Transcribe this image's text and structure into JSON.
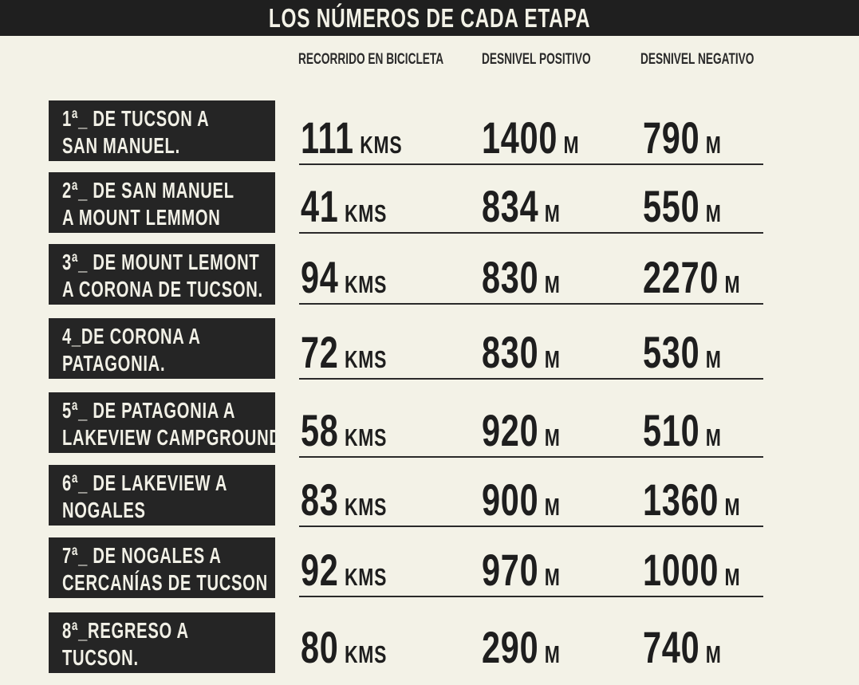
{
  "title": "LOS NÚMEROS DE CADA ETAPA",
  "columns": [
    "RECORRIDO EN BICICLETA",
    "DESNIVEL POSITIVO",
    "DESNIVEL NEGATIVO"
  ],
  "stages": [
    {
      "line1": "1ª_ DE TUCSON A",
      "line2": "SAN MANUEL.",
      "distance": "111",
      "distance_unit": "KMS",
      "pos": "1400",
      "pos_unit": "M",
      "neg": "790",
      "neg_unit": "M"
    },
    {
      "line1": "2ª_ DE SAN MANUEL",
      "line2": "A MOUNT LEMMON",
      "distance": "41",
      "distance_unit": "KMS",
      "pos": "834",
      "pos_unit": "M",
      "neg": "550",
      "neg_unit": "M"
    },
    {
      "line1": "3ª_ DE MOUNT LEMONT",
      "line2": "A CORONA DE TUCSON.",
      "distance": "94",
      "distance_unit": "KMS",
      "pos": "830",
      "pos_unit": "M",
      "neg": "2270",
      "neg_unit": "M"
    },
    {
      "line1": "4_DE CORONA A",
      "line2": "PATAGONIA.",
      "distance": "72",
      "distance_unit": "KMS",
      "pos": "830",
      "pos_unit": "M",
      "neg": "530",
      "neg_unit": "M"
    },
    {
      "line1": "5ª_ DE PATAGONIA A",
      "line2": "LAKEVIEW  CAMPGROUND",
      "distance": "58",
      "distance_unit": "KMS",
      "pos": "920",
      "pos_unit": "M",
      "neg": "510",
      "neg_unit": "M"
    },
    {
      "line1": "6ª_ DE LAKEVIEW A",
      "line2": "NOGALES",
      "distance": "83",
      "distance_unit": "KMS",
      "pos": "900",
      "pos_unit": "M",
      "neg": "1360",
      "neg_unit": "M"
    },
    {
      "line1": "7ª_ DE NOGALES A",
      "line2": "CERCANÍAS DE TUCSON",
      "distance": "92",
      "distance_unit": "KMS",
      "pos": "970",
      "pos_unit": "M",
      "neg": "1000",
      "neg_unit": "M"
    },
    {
      "line1": "8ª_REGRESO  A",
      "line2": "TUCSON.",
      "distance": "80",
      "distance_unit": "KMS",
      "pos": "290",
      "pos_unit": "M",
      "neg": "740",
      "neg_unit": "M"
    }
  ]
}
